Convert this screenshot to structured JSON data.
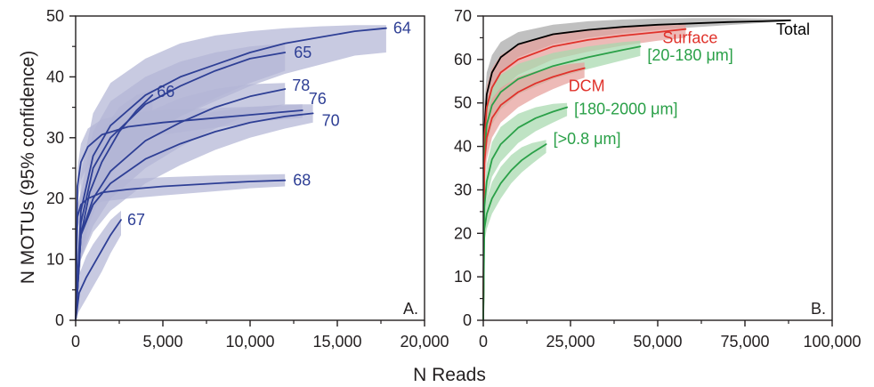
{
  "figure": {
    "xlabel": "N Reads",
    "ylabel": "N MOTUs (95% confidence)"
  },
  "colors": {
    "blue": "#2e3f95",
    "blue_band": "#b3b6d6",
    "black": "#000000",
    "grey_band": "#a8a8a8",
    "red": "#e0322b",
    "red_band": "#e6a09b",
    "green": "#2aa048",
    "green_band": "#a6d8ad",
    "axis": "#231f20"
  },
  "chart_data": [
    {
      "type": "line",
      "panel_label": "A.",
      "xlim": [
        0,
        20000
      ],
      "ylim": [
        0,
        50
      ],
      "x_ticks": [
        0,
        5000,
        10000,
        15000,
        20000
      ],
      "x_tick_labels": [
        "0",
        "5,000",
        "10,000",
        "15,000",
        "20,000"
      ],
      "y_ticks": [
        0,
        10,
        20,
        30,
        40,
        50
      ],
      "y_tick_labels": [
        "0",
        "10",
        "20",
        "30",
        "40",
        "50"
      ],
      "series": [
        {
          "name": "64",
          "color": "blue",
          "band": "blue_band",
          "x": [
            0,
            300,
            1000,
            2000,
            4000,
            6000,
            8000,
            10000,
            12000,
            14000,
            16000,
            17800
          ],
          "y": [
            0,
            18,
            27,
            32,
            37,
            40,
            42,
            44,
            45.5,
            46.5,
            47.5,
            48
          ],
          "lower": [
            0,
            12,
            20,
            25,
            30,
            33.5,
            36,
            38.5,
            40.5,
            42,
            43.5,
            44
          ],
          "upper": [
            0,
            24,
            34,
            39,
            43,
            45.5,
            46.8,
            47.5,
            48,
            48.3,
            48.5,
            48.5
          ]
        },
        {
          "name": "65",
          "color": "blue",
          "band": "blue_band",
          "x": [
            0,
            300,
            1000,
            2000,
            4000,
            6000,
            8000,
            10000,
            12000
          ],
          "y": [
            0,
            16,
            25,
            30,
            35.5,
            38.5,
            41,
            43,
            44
          ],
          "lower": [
            0,
            11,
            19,
            24,
            30,
            33.5,
            36.5,
            39,
            41
          ],
          "upper": [
            0,
            21,
            31,
            36,
            40,
            42.5,
            44,
            45,
            45.5
          ]
        },
        {
          "name": "66",
          "color": "blue",
          "band": "blue_band",
          "x": [
            0,
            300,
            800,
            1500,
            2500,
            3500,
            4400
          ],
          "y": [
            0,
            14,
            21,
            26,
            31,
            34.5,
            37
          ],
          "lower": [
            0,
            10,
            16,
            21,
            26.5,
            30.5,
            33.5
          ],
          "upper": [
            0,
            18,
            26,
            31,
            35,
            37,
            38
          ]
        },
        {
          "name": "67",
          "color": "blue",
          "band": "blue_band",
          "x": [
            0,
            200,
            600,
            1000,
            1500,
            2000,
            2600
          ],
          "y": [
            0,
            4.5,
            7,
            9,
            11.5,
            14,
            16.5
          ],
          "lower": [
            0,
            1.5,
            3.5,
            5.5,
            8,
            11,
            14
          ],
          "upper": [
            0,
            7.5,
            10.5,
            12.5,
            14.5,
            16.5,
            18
          ]
        },
        {
          "name": "68",
          "color": "blue",
          "band": "blue_band",
          "x": [
            0,
            100,
            300,
            700,
            1500,
            3000,
            5000,
            8000,
            10000,
            12000
          ],
          "y": [
            0,
            17,
            19,
            20,
            21,
            21.5,
            22,
            22.5,
            22.8,
            23
          ],
          "lower": [
            0,
            15,
            17,
            18.5,
            19.5,
            20,
            20.5,
            21.2,
            21.7,
            22
          ],
          "upper": [
            0,
            19,
            21,
            22,
            22.8,
            23.2,
            23.5,
            23.8,
            23.9,
            24
          ]
        },
        {
          "name": "70",
          "color": "blue",
          "band": "blue_band",
          "x": [
            0,
            300,
            1000,
            2000,
            4000,
            6000,
            8000,
            10000,
            12000,
            13600
          ],
          "y": [
            0,
            14,
            19,
            22.5,
            26.5,
            29,
            31,
            32.5,
            33.5,
            34
          ],
          "lower": [
            0,
            10,
            14.5,
            18,
            22.5,
            25.5,
            28,
            30,
            31.5,
            32.5
          ],
          "upper": [
            0,
            18,
            24,
            27.5,
            31,
            33,
            34.3,
            35,
            35.5,
            35.5
          ]
        },
        {
          "name": "76",
          "color": "blue",
          "band": "blue_band",
          "x": [
            0,
            100,
            300,
            700,
            1500,
            3000,
            5000,
            7000,
            9000,
            11000,
            13000
          ],
          "y": [
            0,
            22,
            26,
            28.5,
            30.5,
            31.8,
            32.5,
            33,
            33.5,
            34,
            34.5
          ],
          "lower": [
            0,
            19,
            23,
            25.5,
            28,
            29.5,
            30.5,
            31.3,
            32,
            32.8,
            33.3
          ],
          "upper": [
            0,
            25,
            29,
            31.5,
            33,
            34,
            34.5,
            34.8,
            35,
            35.2,
            35.5
          ]
        },
        {
          "name": "78",
          "color": "blue",
          "band": "blue_band",
          "x": [
            0,
            300,
            1000,
            2000,
            4000,
            6000,
            8000,
            10000,
            12000
          ],
          "y": [
            0,
            14,
            20,
            24.5,
            29.5,
            32.5,
            35,
            36.8,
            38
          ],
          "lower": [
            0,
            10,
            15.5,
            20,
            25,
            28.5,
            31.5,
            33.8,
            35.5
          ],
          "upper": [
            0,
            18,
            25,
            29.5,
            34,
            36.5,
            38,
            38.8,
            39
          ]
        }
      ]
    },
    {
      "type": "line",
      "panel_label": "B.",
      "xlim": [
        0,
        100000
      ],
      "ylim": [
        0,
        70
      ],
      "x_ticks": [
        0,
        25000,
        50000,
        75000,
        100000
      ],
      "x_tick_labels": [
        "0",
        "25,000",
        "50,000",
        "75,000",
        "100,000"
      ],
      "y_ticks": [
        0,
        10,
        20,
        30,
        40,
        50,
        60,
        70
      ],
      "y_tick_labels": [
        "0",
        "10",
        "20",
        "30",
        "40",
        "50",
        "60",
        "70"
      ],
      "series": [
        {
          "name": "Total",
          "color": "black",
          "band": "grey_band",
          "x": [
            0,
            300,
            1000,
            2500,
            5000,
            10000,
            20000,
            30000,
            40000,
            50000,
            60000,
            70000,
            80000,
            88000
          ],
          "y": [
            0,
            44,
            52,
            57,
            60.5,
            63.5,
            65.8,
            66.8,
            67.5,
            68,
            68.3,
            68.6,
            68.8,
            69
          ],
          "lower": [
            0,
            38,
            47,
            53,
            57,
            60.5,
            63.5,
            65,
            66,
            66.8,
            67.4,
            67.9,
            68.4,
            68.8
          ],
          "upper": [
            0,
            50,
            57,
            61,
            64,
            66.3,
            68,
            68.8,
            69.2,
            69.4,
            69.5,
            69.5,
            69.4,
            69.2
          ]
        },
        {
          "name": "Surface",
          "color": "red",
          "band": "red_band",
          "x": [
            0,
            300,
            1000,
            2500,
            5000,
            10000,
            20000,
            30000,
            40000,
            50000,
            58000
          ],
          "y": [
            0,
            42,
            49,
            53.5,
            57,
            60,
            63,
            64.5,
            65.5,
            66.3,
            67
          ],
          "lower": [
            0,
            36,
            44,
            49,
            53,
            56.5,
            60,
            61.8,
            63.2,
            64.3,
            65
          ],
          "upper": [
            0,
            48,
            54,
            58,
            61,
            63.5,
            66,
            67,
            67.5,
            67.8,
            68
          ]
        },
        {
          "name": "[20-180 μm]",
          "color": "green",
          "band": "green_band",
          "x": [
            0,
            300,
            1000,
            2500,
            5000,
            10000,
            20000,
            30000,
            40000,
            45000
          ],
          "y": [
            0,
            38,
            45,
            49.5,
            52.5,
            55.5,
            58.5,
            60.5,
            62.2,
            63
          ],
          "lower": [
            0,
            32,
            40,
            45,
            48.5,
            52,
            55.5,
            57.8,
            59.8,
            60.8
          ],
          "upper": [
            0,
            44,
            50,
            54,
            56.5,
            59,
            61.5,
            63,
            64,
            64.3
          ]
        },
        {
          "name": "DCM",
          "color": "red",
          "band": "red_band",
          "x": [
            0,
            300,
            1000,
            2500,
            5000,
            10000,
            15000,
            20000,
            25000,
            29000
          ],
          "y": [
            0,
            36,
            42,
            46.5,
            49.5,
            52.5,
            54.5,
            56,
            57.2,
            58
          ],
          "lower": [
            0,
            30,
            37,
            42,
            45.5,
            49,
            51.3,
            53.2,
            54.8,
            55.8
          ],
          "upper": [
            0,
            42,
            47,
            51,
            53.5,
            56,
            57.3,
            58.3,
            59,
            59.3
          ]
        },
        {
          "name": "[180-2000 μm]",
          "color": "green",
          "band": "green_band",
          "x": [
            0,
            300,
            1000,
            2500,
            5000,
            10000,
            15000,
            20000,
            24000
          ],
          "y": [
            0,
            26,
            32,
            37,
            40.5,
            44.3,
            46.5,
            48,
            49
          ],
          "lower": [
            0,
            22,
            28,
            33,
            36.5,
            40.8,
            43.5,
            45.5,
            47
          ],
          "upper": [
            0,
            30,
            36,
            41,
            44.5,
            47.5,
            49,
            49.8,
            50
          ]
        },
        {
          "name": "[>0.8 μm]",
          "color": "green",
          "band": "green_band",
          "x": [
            0,
            300,
            1000,
            2500,
            5000,
            8000,
            11000,
            14000,
            18000
          ],
          "y": [
            0,
            21,
            24.5,
            28,
            31.5,
            34.5,
            36.8,
            38.5,
            40.5
          ],
          "lower": [
            0,
            18,
            21,
            24.5,
            28,
            31.5,
            34,
            36,
            38.5
          ],
          "upper": [
            0,
            24,
            28,
            31.8,
            35.3,
            38,
            39.8,
            40.8,
            41.5
          ]
        }
      ]
    }
  ]
}
